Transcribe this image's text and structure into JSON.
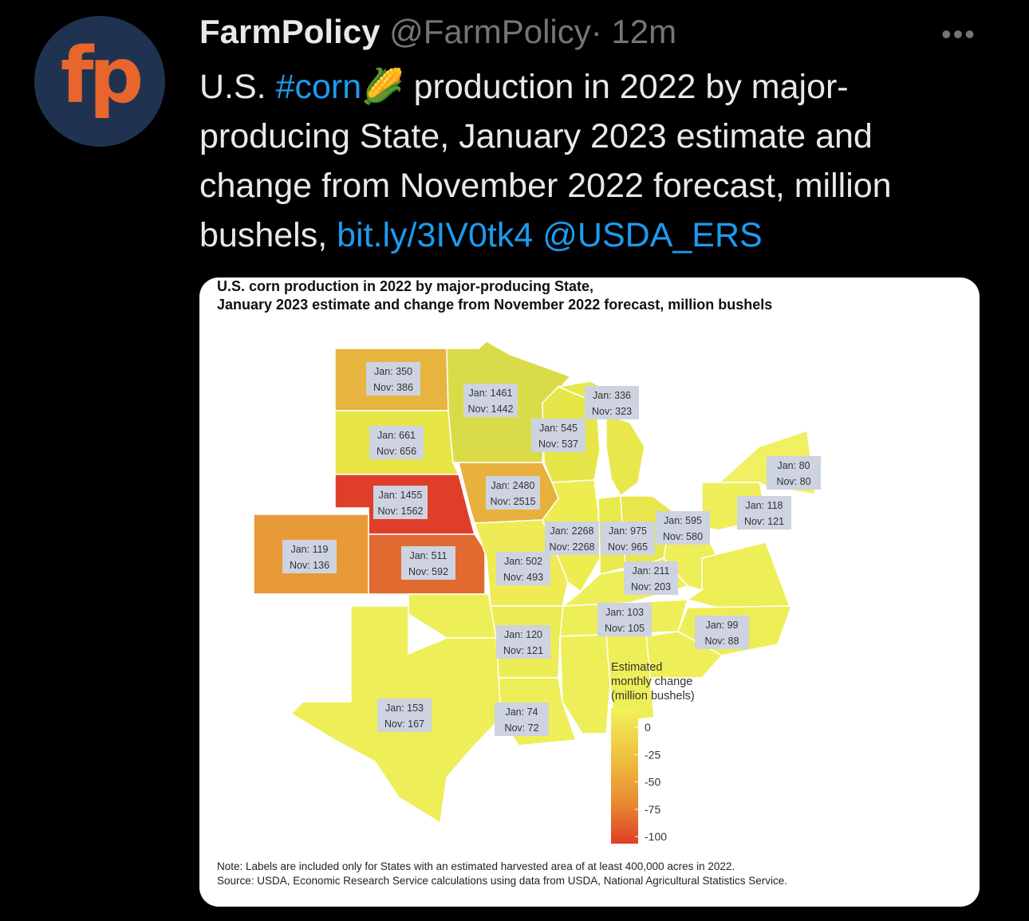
{
  "tweet": {
    "author": {
      "avatar_text": "fp",
      "name": "FarmPolicy",
      "handle": "@FarmPolicy",
      "time": "· 12m"
    },
    "text": {
      "lead": "U.S. ",
      "hashtag": "#corn",
      "body": "🌽 production in 2022 by major-producing State, January 2023 estimate and change from November 2022 forecast, million bushels, ",
      "link": "bit.ly/3IV0tk4",
      "mention": "@USDA_ERS"
    },
    "image": {
      "title": [
        "U.S. corn production in 2022 by major-producing State,",
        "January 2023 estimate and change from November 2022 forecast, million bushels"
      ],
      "states": [
        {
          "jan": "Jan: 350",
          "nov": "Nov: 386"
        },
        {
          "jan": "Jan: 1461",
          "nov": "Nov: 1442"
        },
        {
          "jan": "Jan: 336",
          "nov": "Nov: 323"
        },
        {
          "jan": "Jan: 661",
          "nov": "Nov: 656"
        },
        {
          "jan": "Jan: 545",
          "nov": "Nov: 537"
        },
        {
          "jan": "Jan: 80",
          "nov": "Nov: 80"
        },
        {
          "jan": "Jan: 2480",
          "nov": "Nov: 2515"
        },
        {
          "jan": "Jan: 1455",
          "nov": "Nov: 1562"
        },
        {
          "jan": "Jan: 118",
          "nov": "Nov: 121"
        },
        {
          "jan": "Jan: 595",
          "nov": "Nov: 580"
        },
        {
          "jan": "Jan: 2268",
          "nov": "Nov: 2268"
        },
        {
          "jan": "Jan: 975",
          "nov": "Nov: 965"
        },
        {
          "jan": "Jan: 119",
          "nov": "Nov: 136"
        },
        {
          "jan": "Jan: 511",
          "nov": "Nov: 592"
        },
        {
          "jan": "Jan: 502",
          "nov": "Nov: 493"
        },
        {
          "jan": "Jan: 211",
          "nov": "Nov: 203"
        },
        {
          "jan": "Jan: 103",
          "nov": "Nov: 105"
        },
        {
          "jan": "Jan: 99",
          "nov": "Nov: 88"
        },
        {
          "jan": "Jan: 120",
          "nov": "Nov: 121"
        },
        {
          "jan": "Jan: 153",
          "nov": "Nov: 167"
        },
        {
          "jan": "Jan: 74",
          "nov": "Nov: 72"
        }
      ],
      "legend": {
        "title": [
          "Estimated",
          "monthly change",
          "(million bushels)"
        ],
        "ticks": [
          0,
          -25,
          -50,
          -75,
          -100
        ]
      },
      "notes": [
        "Note: Labels are included only for States with an estimated harvested area of at least 400,000 acres in 2022.",
        "Source: USDA, Economic Research Service calculations using data from USDA, National Agricultural Statistics Service."
      ]
    }
  }
}
